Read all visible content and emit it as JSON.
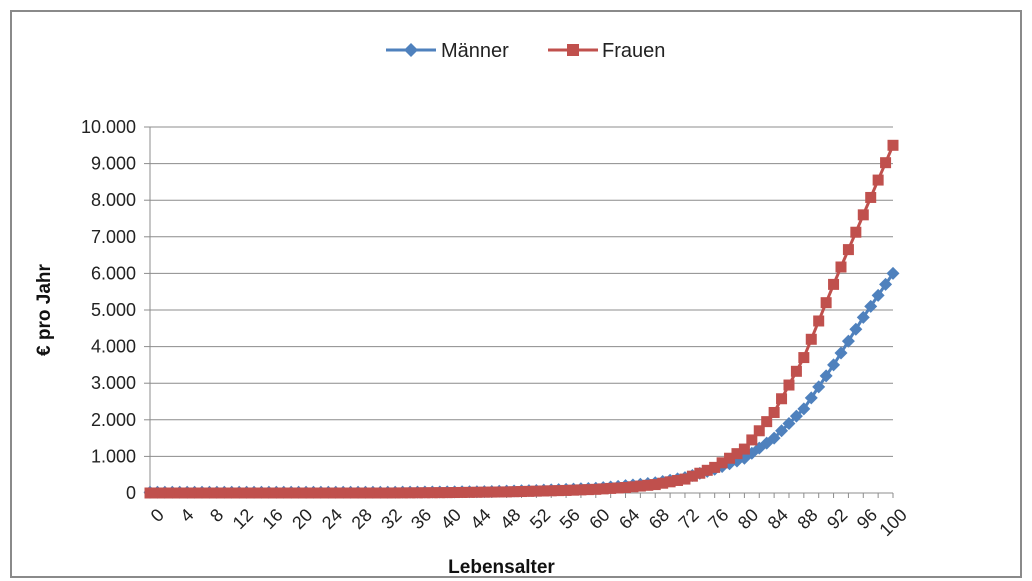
{
  "chart_data": {
    "type": "line",
    "xlabel": "Lebensalter",
    "ylabel": "€ pro Jahr",
    "ylim": [
      0,
      10000
    ],
    "xlim": [
      0,
      100
    ],
    "x_tick_labels": [
      "0",
      "4",
      "8",
      "12",
      "16",
      "20",
      "24",
      "28",
      "32",
      "36",
      "40",
      "44",
      "48",
      "52",
      "56",
      "60",
      "64",
      "68",
      "72",
      "76",
      "80",
      "84",
      "88",
      "92",
      "96",
      "100"
    ],
    "y_tick_labels": [
      "0",
      "1.000",
      "2.000",
      "3.000",
      "4.000",
      "5.000",
      "6.000",
      "7.000",
      "8.000",
      "9.000",
      "10.000"
    ],
    "grid": "horizontal",
    "legend_position": "top",
    "series": [
      {
        "name": "Männer",
        "color": "#4f81bd",
        "marker": "diamond",
        "x": [
          0,
          4,
          8,
          12,
          16,
          20,
          24,
          28,
          32,
          36,
          40,
          44,
          48,
          52,
          56,
          60,
          64,
          68,
          72,
          76,
          80,
          84,
          88,
          92,
          96,
          100
        ],
        "y": [
          20,
          20,
          20,
          20,
          20,
          20,
          20,
          20,
          20,
          25,
          30,
          35,
          50,
          70,
          100,
          130,
          200,
          280,
          420,
          650,
          950,
          1500,
          2300,
          3500,
          4800,
          6000
        ]
      },
      {
        "name": "Frauen",
        "color": "#c0504d",
        "marker": "square",
        "x": [
          0,
          4,
          8,
          12,
          16,
          20,
          24,
          28,
          32,
          36,
          40,
          44,
          48,
          52,
          56,
          60,
          64,
          68,
          72,
          76,
          80,
          84,
          88,
          92,
          96,
          100
        ],
        "y": [
          0,
          0,
          0,
          0,
          0,
          0,
          0,
          0,
          0,
          5,
          10,
          20,
          30,
          50,
          70,
          100,
          150,
          230,
          380,
          700,
          1200,
          2200,
          3700,
          5700,
          7600,
          9500
        ]
      }
    ]
  }
}
